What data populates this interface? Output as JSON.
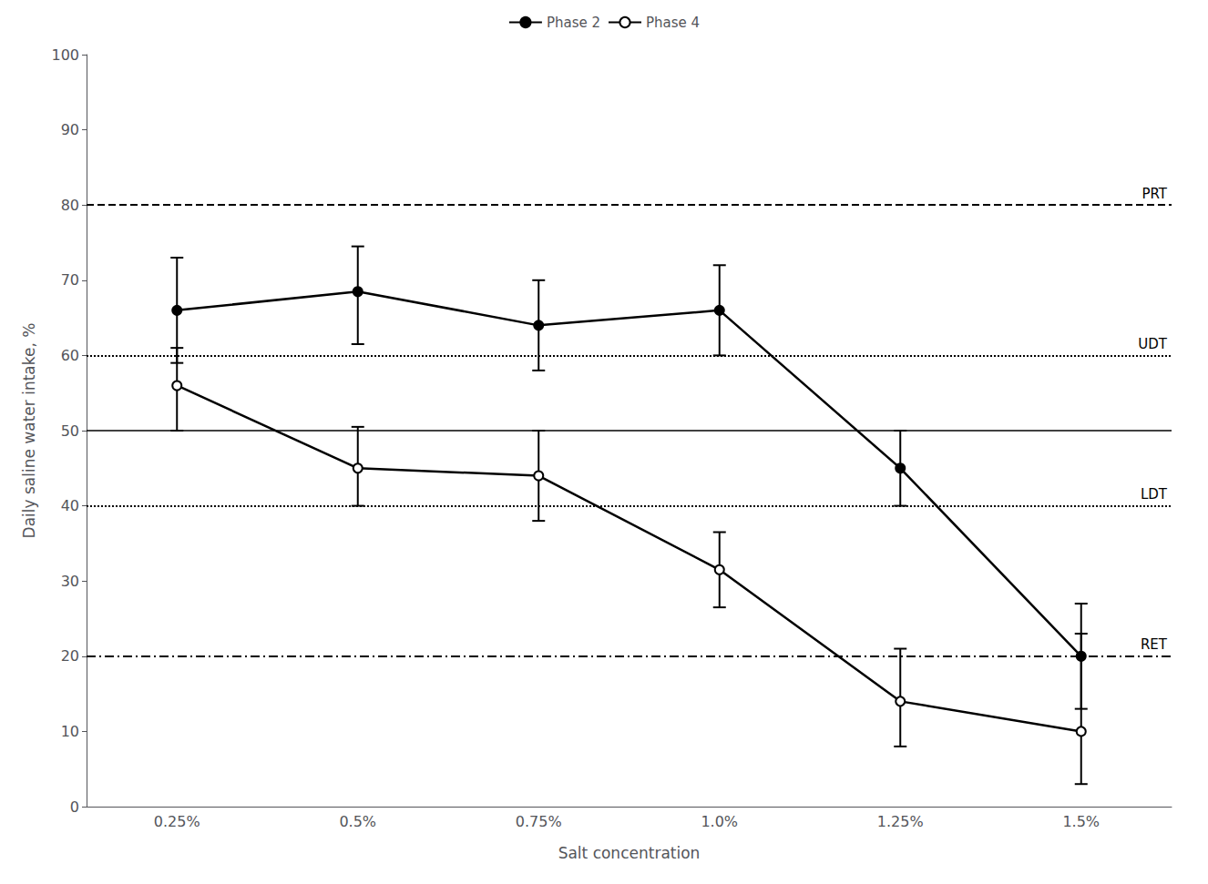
{
  "chart_data": {
    "type": "line",
    "xlabel": "Salt concentration",
    "ylabel": "Daily saline water intake, %",
    "categories": [
      "0.25%",
      "0.5%",
      "0.75%",
      "1.0%",
      "1.25%",
      "1.5%"
    ],
    "series": [
      {
        "name": "Phase 2",
        "color": "#000000",
        "marker": "circle",
        "line_style": "solid",
        "values": [
          66,
          68.5,
          64,
          66,
          45,
          20
        ],
        "error_upper": [
          7,
          6,
          6,
          6,
          5,
          7
        ],
        "error_lower": [
          7,
          7,
          6,
          6,
          5,
          7
        ]
      },
      {
        "name": "Phase 4",
        "color": "#000000",
        "marker": "circle_open",
        "line_style": "solid",
        "values": [
          56,
          45,
          44,
          31.5,
          14,
          10
        ],
        "error_upper": [
          5,
          5.5,
          6,
          5,
          7,
          13
        ],
        "error_lower": [
          6,
          5,
          6,
          5,
          6,
          7
        ]
      }
    ],
    "reference_lines": [
      {
        "value": 80,
        "label": "PRT",
        "line_style": "dashed",
        "color": "#000000"
      },
      {
        "value": 60,
        "label": "UDT",
        "line_style": "dotted",
        "color": "#000000"
      },
      {
        "value": 50,
        "line_style": "solid",
        "color": "#000000"
      },
      {
        "value": 40,
        "label": "LDT",
        "line_style": "dotted",
        "color": "#000000"
      },
      {
        "value": 20,
        "label": "RET",
        "line_style": "dashdot",
        "color": "#000000"
      }
    ],
    "ylim": [
      0,
      100
    ],
    "yticks": [
      0,
      10,
      20,
      30,
      40,
      50,
      60,
      70,
      80,
      90,
      100
    ],
    "grid": false,
    "legend": "top"
  }
}
